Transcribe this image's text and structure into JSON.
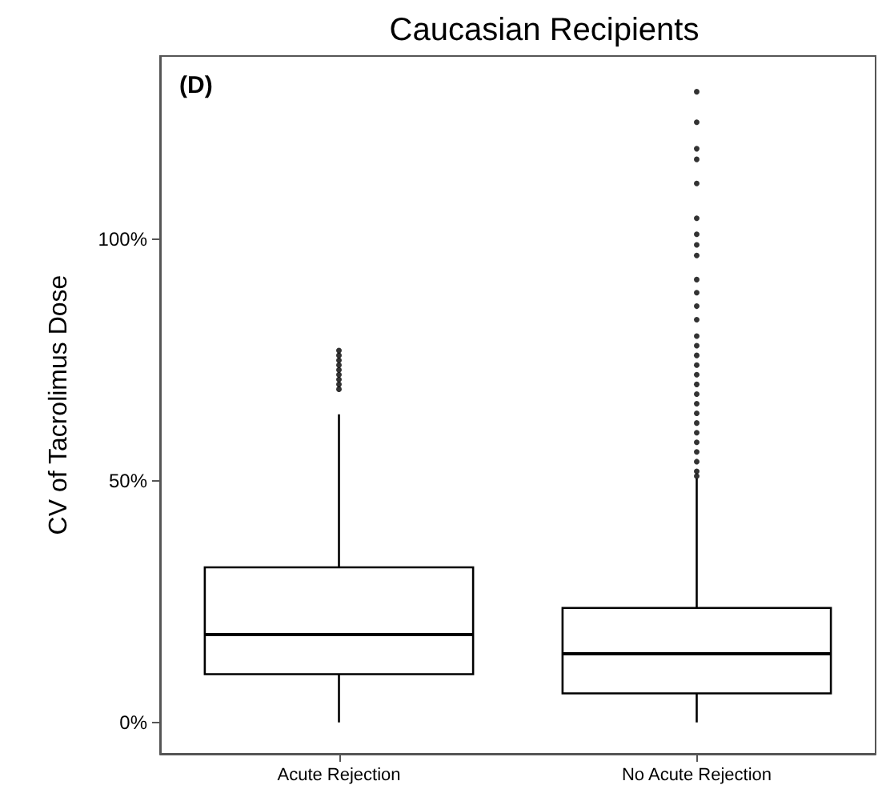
{
  "chart_data": {
    "type": "box",
    "title": "Caucasian Recipients",
    "ylabel": "CV of Tacrolimus Dose",
    "annotations": [
      "(D)"
    ],
    "categories": [
      "Acute Rejection",
      "No Acute Rejection"
    ],
    "boxes": [
      {
        "low": 0,
        "q1": 10,
        "median": 18.2,
        "q3": 32.1,
        "high": 63.8,
        "outliers": [
          69,
          70,
          71,
          72,
          73,
          74,
          75,
          76,
          77
        ]
      },
      {
        "low": 0,
        "q1": 6,
        "median": 14.2,
        "q3": 23.7,
        "high": 50.5,
        "outliers": [
          51,
          52,
          54,
          56,
          58,
          60,
          62,
          64,
          66,
          68,
          70,
          72,
          74,
          76,
          78,
          80,
          83.4,
          86.2,
          89,
          91.7,
          96.7,
          98.9,
          101.1,
          104.4,
          111.6,
          116.6,
          118.8,
          124.3,
          130.6
        ]
      }
    ],
    "color": "#000000",
    "ylim": [
      -6.5,
      138
    ],
    "yticks": [
      {
        "value": 0,
        "label": "0%"
      },
      {
        "value": 50,
        "label": "50%"
      },
      {
        "value": 100,
        "label": "100%"
      }
    ],
    "grid": false
  }
}
